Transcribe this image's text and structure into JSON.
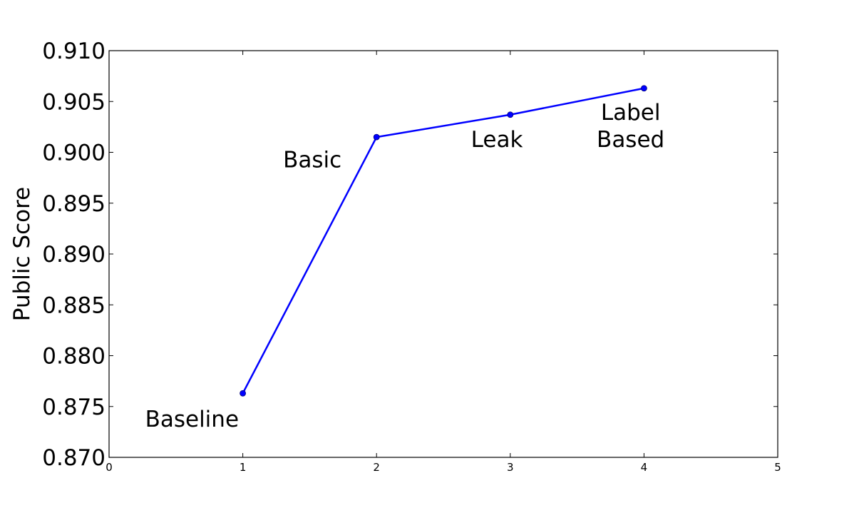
{
  "chart_data": {
    "type": "line",
    "title": "",
    "xlabel": "",
    "ylabel": "Public Score",
    "xlim": [
      0,
      5
    ],
    "ylim": [
      0.87,
      0.91
    ],
    "xticks": [
      "0",
      "1",
      "2",
      "3",
      "4",
      "5"
    ],
    "yticks": [
      "0.870",
      "0.875",
      "0.880",
      "0.885",
      "0.890",
      "0.895",
      "0.900",
      "0.905",
      "0.910"
    ],
    "grid": false,
    "series": [
      {
        "color": "#0000ff",
        "x": [
          1,
          2,
          3,
          4
        ],
        "y": [
          0.8763,
          0.9015,
          0.9037,
          0.9063
        ]
      }
    ],
    "annotations": [
      {
        "lines": [
          "Baseline"
        ],
        "x": 0.62,
        "y": 0.8738
      },
      {
        "lines": [
          "Basic"
        ],
        "x": 1.52,
        "y": 0.8993
      },
      {
        "lines": [
          "Leak"
        ],
        "x": 2.9,
        "y": 0.9013
      },
      {
        "lines": [
          "Label",
          "Based"
        ],
        "x": 3.9,
        "y": 0.9013
      }
    ]
  }
}
